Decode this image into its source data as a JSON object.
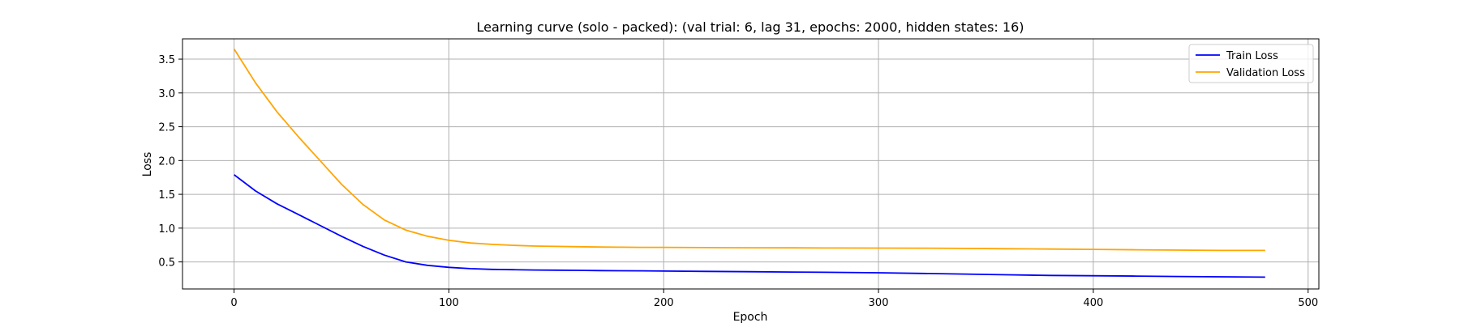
{
  "chart_data": {
    "type": "line",
    "title": "Learning curve (solo - packed): (val trial: 6, lag 31, epochs: 2000, hidden states: 16)",
    "xlabel": "Epoch",
    "ylabel": "Loss",
    "xlim": [
      -24,
      505
    ],
    "ylim": [
      0.1,
      3.8
    ],
    "xticks": [
      0,
      100,
      200,
      300,
      400,
      500
    ],
    "xtick_labels": [
      "0",
      "100",
      "200",
      "300",
      "400",
      "500"
    ],
    "yticks": [
      0.5,
      1.0,
      1.5,
      2.0,
      2.5,
      3.0,
      3.5
    ],
    "ytick_labels": [
      "0.5",
      "1.0",
      "1.5",
      "2.0",
      "2.5",
      "3.0",
      "3.5"
    ],
    "grid": true,
    "legend_position": "top-right",
    "x": [
      0,
      10,
      20,
      30,
      40,
      50,
      60,
      70,
      80,
      90,
      100,
      110,
      120,
      130,
      140,
      150,
      160,
      170,
      180,
      190,
      200,
      220,
      240,
      260,
      280,
      300,
      320,
      340,
      360,
      380,
      400,
      420,
      440,
      460,
      480
    ],
    "series": [
      {
        "name": "Train Loss",
        "color": "#0000ff",
        "values": [
          1.79,
          1.55,
          1.36,
          1.2,
          1.04,
          0.88,
          0.73,
          0.6,
          0.5,
          0.45,
          0.42,
          0.4,
          0.39,
          0.385,
          0.38,
          0.378,
          0.375,
          0.372,
          0.37,
          0.368,
          0.365,
          0.36,
          0.355,
          0.35,
          0.345,
          0.34,
          0.33,
          0.32,
          0.31,
          0.3,
          0.295,
          0.29,
          0.285,
          0.28,
          0.275
        ]
      },
      {
        "name": "Validation Loss",
        "color": "#ffa500",
        "values": [
          3.65,
          3.15,
          2.72,
          2.35,
          2.0,
          1.65,
          1.35,
          1.12,
          0.97,
          0.88,
          0.82,
          0.78,
          0.76,
          0.745,
          0.735,
          0.73,
          0.725,
          0.72,
          0.718,
          0.716,
          0.715,
          0.712,
          0.71,
          0.708,
          0.706,
          0.705,
          0.703,
          0.7,
          0.695,
          0.69,
          0.685,
          0.68,
          0.675,
          0.67,
          0.67
        ]
      }
    ]
  }
}
